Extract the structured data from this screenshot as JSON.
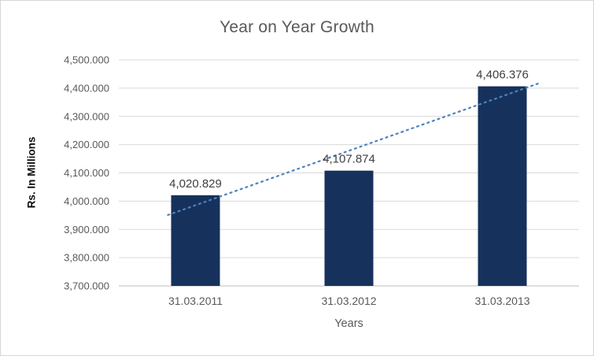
{
  "chart_data": {
    "type": "bar",
    "title": "Year on Year Growth",
    "xlabel": "Years",
    "ylabel": "Rs. In Millions",
    "categories": [
      "31.03.2011",
      "31.03.2012",
      "31.03.2013"
    ],
    "values": [
      4020.829,
      4107.874,
      4406.376
    ],
    "value_labels": [
      "4,020.829",
      "4,107.874",
      "4,406.376"
    ],
    "ylim": [
      3700,
      4500
    ],
    "ytick_step": 100,
    "ytick_labels": [
      "3,700.000",
      "3,800.000",
      "3,900.000",
      "4,000.000",
      "4,100.000",
      "4,200.000",
      "4,300.000",
      "4,400.000",
      "4,500.000"
    ],
    "grid": true,
    "legend": false,
    "bar_color": "#16325c",
    "trendline": {
      "type": "linear",
      "style": "dotted",
      "color": "#4f81bd"
    }
  }
}
